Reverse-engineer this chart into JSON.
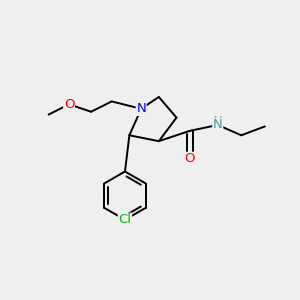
{
  "background_color": "#efefef",
  "atom_colors": {
    "N": "#0000ff",
    "O": "#ff0000",
    "Cl": "#00bb00",
    "NH": "#4a9a9a",
    "C": "#000000"
  },
  "figsize": [
    3.0,
    3.0
  ],
  "dpi": 100,
  "lw": 1.4,
  "fontsize": 8.5
}
